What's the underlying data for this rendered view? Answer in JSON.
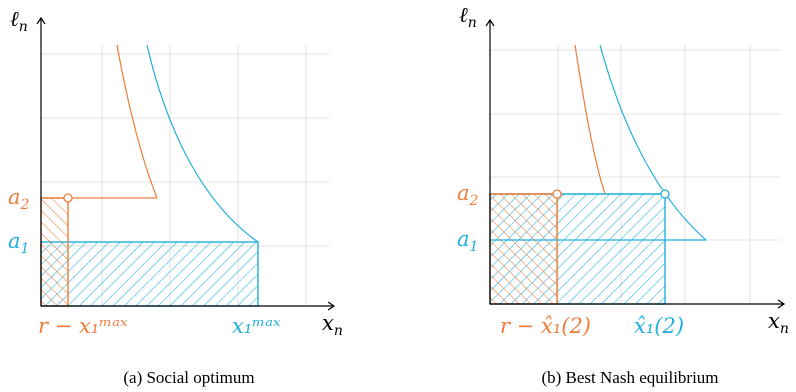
{
  "colors": {
    "orange": "#ee7d3b",
    "cyan": "#1fb0dd",
    "grid": "#e3e3e3",
    "axis": "#000000"
  },
  "panels": [
    {
      "caption": "(a) Social optimum",
      "y_axis_label": "ℓ",
      "y_axis_sub": "n",
      "x_axis_label": "x",
      "x_axis_sub": "n",
      "level_labels": [
        "a",
        "a"
      ],
      "level_subs": [
        "2",
        "1"
      ],
      "x_tick_labels": [
        "r − x₁ᵐᵃˣ",
        "x₁ᵐᵃˣ"
      ]
    },
    {
      "caption": "(b) Best Nash equilibrium",
      "y_axis_label": "ℓ",
      "y_axis_sub": "n",
      "x_axis_label": "x",
      "x_axis_sub": "n",
      "level_labels": [
        "a",
        "a"
      ],
      "level_subs": [
        "2",
        "1"
      ],
      "x_tick_labels": [
        "r − x̂₁(2)",
        "x̂₁(2)"
      ]
    }
  ]
}
